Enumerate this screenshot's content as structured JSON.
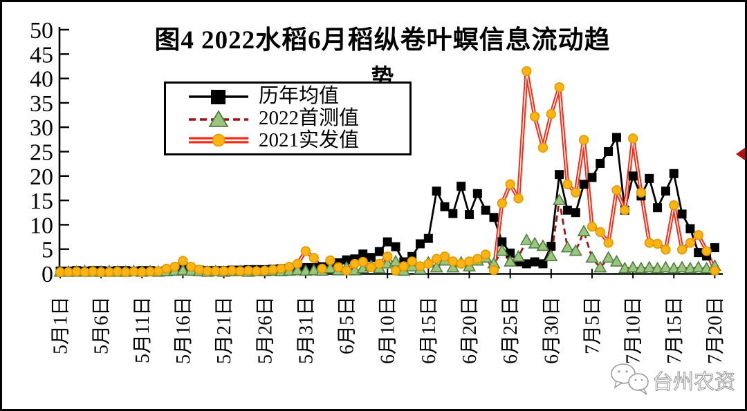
{
  "figure": {
    "title_line1": "图4  2022水稻6月稻纵卷叶螟信息流动趋",
    "title_line2": "势",
    "watermark_text": "台州农资"
  },
  "chart_data": {
    "type": "line",
    "title": "图4 2022水稻6月稻纵卷叶螟信息流动趋势",
    "xlabel": "",
    "ylabel": "",
    "ylim": [
      0,
      50
    ],
    "grid": false,
    "legend_position": "upper-left-inside",
    "y_ticks": [
      0,
      5,
      10,
      15,
      20,
      25,
      30,
      35,
      40,
      45,
      50
    ],
    "x_ticks": [
      {
        "label": "5月1日",
        "day": 0
      },
      {
        "label": "5月6日",
        "day": 5
      },
      {
        "label": "5月11日",
        "day": 10
      },
      {
        "label": "5月16日",
        "day": 15
      },
      {
        "label": "5月21日",
        "day": 20
      },
      {
        "label": "5月26日",
        "day": 25
      },
      {
        "label": "5月31日",
        "day": 30
      },
      {
        "label": "6月5日",
        "day": 35
      },
      {
        "label": "6月10日",
        "day": 40
      },
      {
        "label": "6月15日",
        "day": 45
      },
      {
        "label": "6月20日",
        "day": 50
      },
      {
        "label": "6月25日",
        "day": 55
      },
      {
        "label": "6月30日",
        "day": 60
      },
      {
        "label": "7月5日",
        "day": 65
      },
      {
        "label": "7月10日",
        "day": 70
      },
      {
        "label": "7月15日",
        "day": 75
      },
      {
        "label": "7月20日",
        "day": 80
      }
    ],
    "x_range_note": "daily values, 5月1日 (day 0) through 7月20日 (day 80)",
    "series": [
      {
        "id": "historical-average",
        "name": "历年均值",
        "line": "solid",
        "color": "#000000",
        "marker": "square",
        "marker_color": "#000000",
        "marker_edge": "#000000",
        "values": [
          0.5,
          0.5,
          0.6,
          0.5,
          0.6,
          0.6,
          0.5,
          0.6,
          0.6,
          0.5,
          0.6,
          0.6,
          0.5,
          0.6,
          0.7,
          0.8,
          0.8,
          0.7,
          0.6,
          0.6,
          0.6,
          0.7,
          0.7,
          0.8,
          0.8,
          0.8,
          0.9,
          1.0,
          1.0,
          1.1,
          1.2,
          1.2,
          1.4,
          1.6,
          2.2,
          2.8,
          3.0,
          4.0,
          3.3,
          4.5,
          6.5,
          5.5,
          2.4,
          3.5,
          6.1,
          7.2,
          16.9,
          13.7,
          12.3,
          17.9,
          12.1,
          16.4,
          13.0,
          11.5,
          6.5,
          4.2,
          2.4,
          2.0,
          2.4,
          2.0,
          5.6,
          20.3,
          13.0,
          12.5,
          18.3,
          19.7,
          22.6,
          25.0,
          27.9,
          13.0,
          20.0,
          15.9,
          19.5,
          13.5,
          16.9,
          20.5,
          12.2,
          9.2,
          4.3,
          3.6,
          5.3
        ]
      },
      {
        "id": "2022-first-survey",
        "name": "2022首测值",
        "line": "dashed",
        "color": "#a31414",
        "marker": "triangle",
        "marker_color": "#9cc67e",
        "marker_edge": "#4f7e42",
        "values": [
          0.3,
          0.3,
          0.3,
          0.4,
          0.3,
          0.3,
          0.4,
          0.3,
          0.3,
          0.4,
          0.3,
          0.4,
          0.3,
          0.4,
          0.5,
          0.6,
          0.5,
          0.4,
          0.3,
          0.4,
          0.3,
          0.4,
          0.4,
          0.3,
          0.4,
          0.4,
          0.5,
          0.4,
          0.5,
          0.6,
          0.5,
          0.6,
          0.5,
          1.0,
          0.6,
          1.2,
          0.6,
          1.0,
          1.5,
          1.0,
          2.0,
          2.4,
          0.5,
          1.4,
          0.8,
          2.2,
          1.2,
          2.6,
          1.2,
          2.2,
          1.4,
          2.6,
          3.2,
          2.0,
          4.6,
          2.4,
          3.4,
          6.8,
          6.1,
          5.6,
          3.5,
          15.0,
          5.3,
          4.6,
          8.6,
          3.2,
          1.2,
          3.2,
          2.4,
          1.0,
          1.2,
          1.0,
          1.2,
          1.0,
          1.2,
          1.0,
          1.2,
          1.0,
          1.2,
          1.0,
          1.5
        ]
      },
      {
        "id": "2021-actual",
        "name": "2021实发值",
        "line": "double",
        "color": "#fb2a12",
        "marker": "circle",
        "marker_color": "#ffb414",
        "marker_edge": "#df9b00",
        "values": [
          0.3,
          0.3,
          0.4,
          0.3,
          0.4,
          0.3,
          0.3,
          0.4,
          0.3,
          0.4,
          0.3,
          0.4,
          0.5,
          1.0,
          1.4,
          2.6,
          1.4,
          0.8,
          0.5,
          0.5,
          0.5,
          0.6,
          0.5,
          0.6,
          0.5,
          0.6,
          0.8,
          1.0,
          1.4,
          2.0,
          4.6,
          3.2,
          1.0,
          2.7,
          1.3,
          0.6,
          2.0,
          2.4,
          1.3,
          2.0,
          3.5,
          0.6,
          1.5,
          2.5,
          1.5,
          2.0,
          3.0,
          3.5,
          2.5,
          2.0,
          2.5,
          3.0,
          3.9,
          0.7,
          14.4,
          18.3,
          15.4,
          41.5,
          32.2,
          25.8,
          32.7,
          38.2,
          18.3,
          16.6,
          27.4,
          9.6,
          8.5,
          6.3,
          17.1,
          13.0,
          27.7,
          16.6,
          6.3,
          6.1,
          4.9,
          14.0,
          4.9,
          6.3,
          7.9,
          4.6,
          0.6
        ]
      }
    ]
  }
}
